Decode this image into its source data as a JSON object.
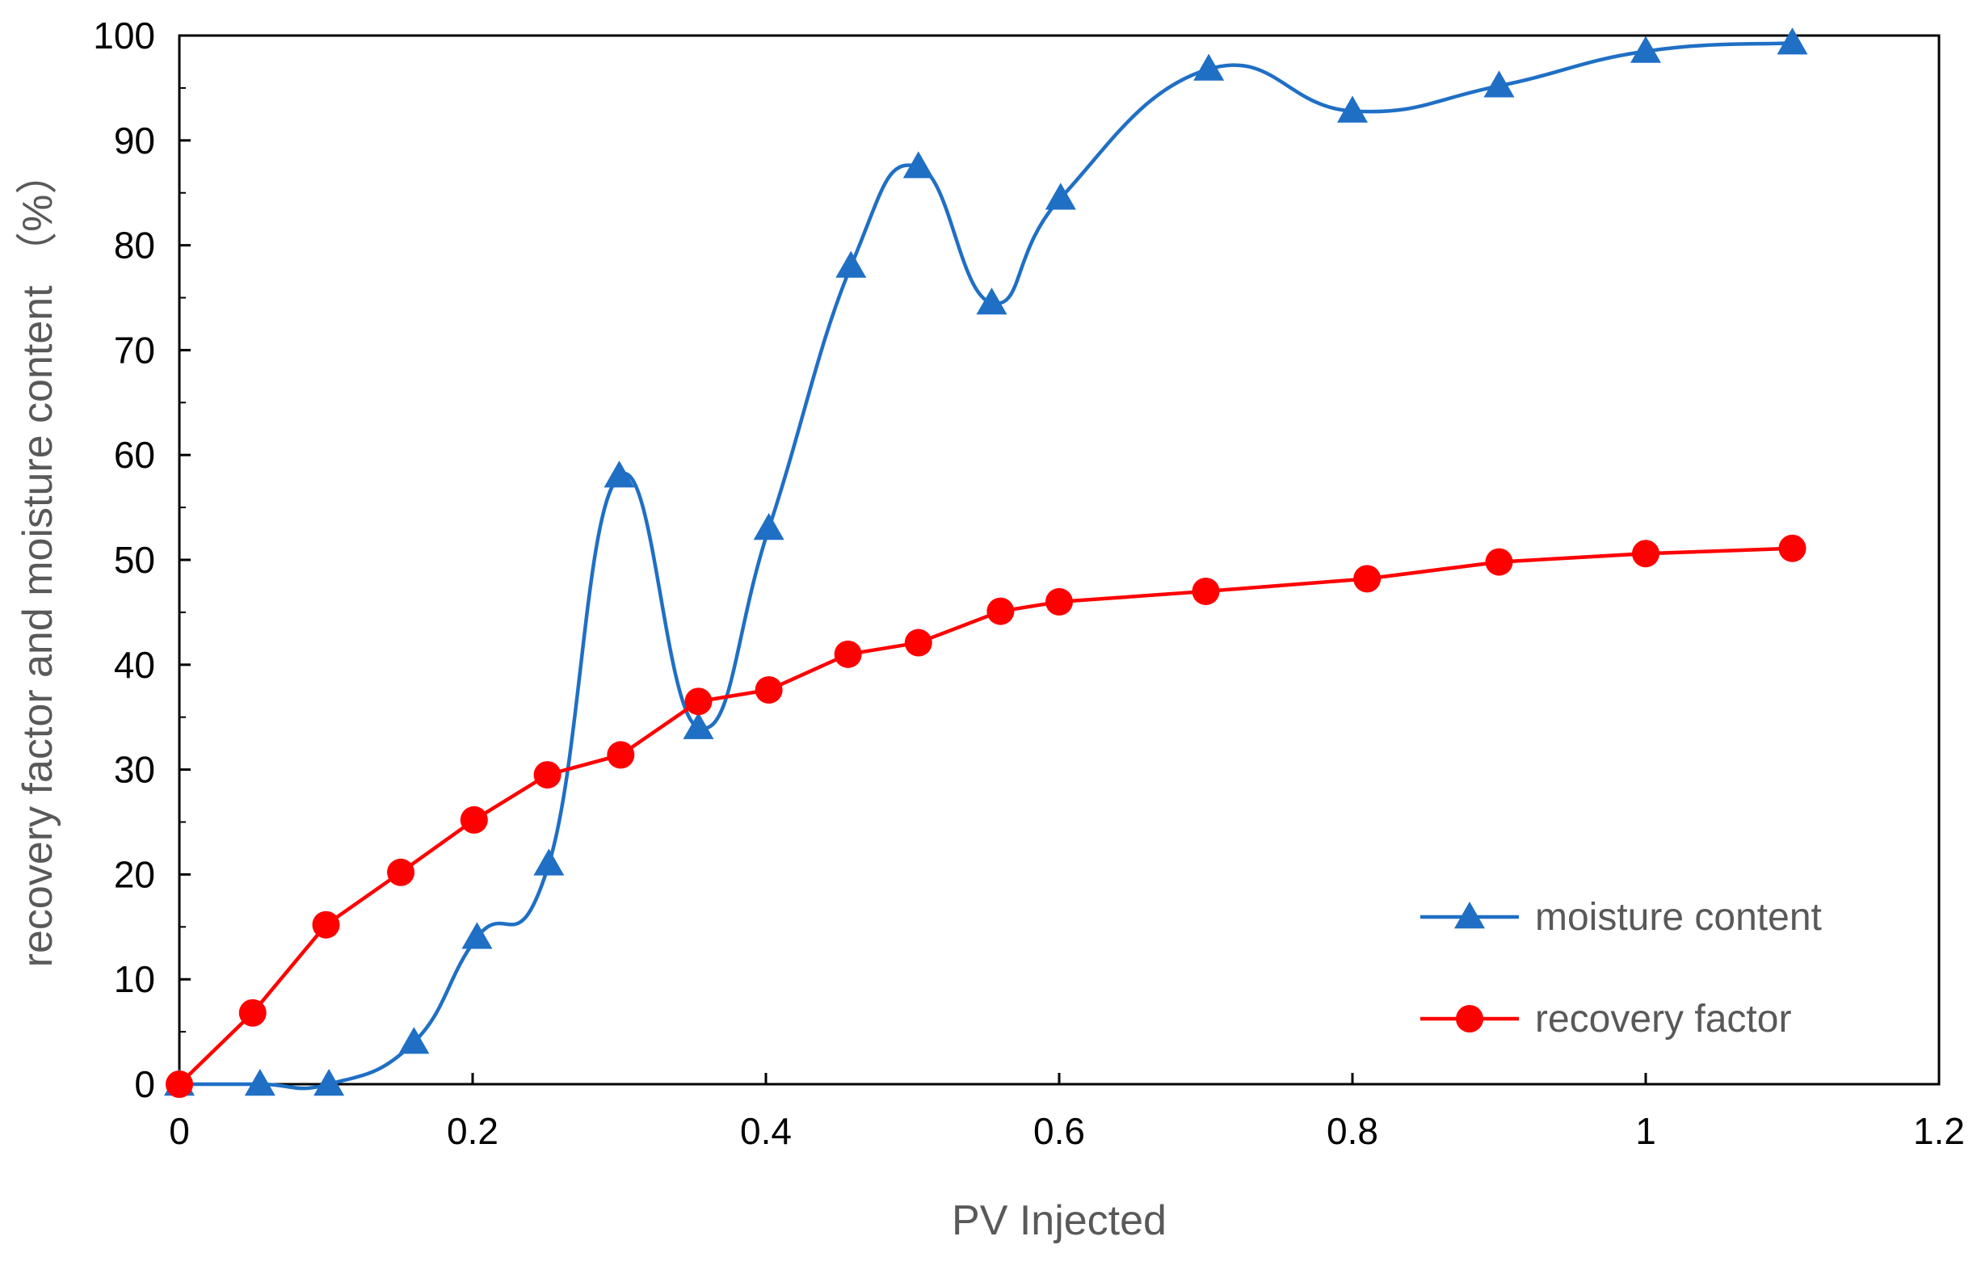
{
  "chart_data": {
    "type": "line",
    "title": "",
    "xlabel": "PV Injected",
    "ylabel": "recovery factor and moisture content （%）",
    "xlim": [
      0,
      1.2
    ],
    "ylim": [
      0,
      100
    ],
    "x_ticks": [
      "0",
      "0.2",
      "0.4",
      "0.6",
      "0.8",
      "1",
      "1.2"
    ],
    "y_ticks": [
      "0",
      "10",
      "20",
      "30",
      "40",
      "50",
      "60",
      "70",
      "80",
      "90",
      "100"
    ],
    "grid": false,
    "legend_position": "bottom-right",
    "series": [
      {
        "name": "moisture content",
        "color": "#1f6fc5",
        "marker": "triangle",
        "smooth": true,
        "points": [
          [
            0,
            0
          ],
          [
            0.055,
            0
          ],
          [
            0.102,
            0
          ],
          [
            0.16,
            4
          ],
          [
            0.203,
            14
          ],
          [
            0.252,
            21
          ],
          [
            0.3,
            58
          ],
          [
            0.354,
            34
          ],
          [
            0.402,
            53
          ],
          [
            0.458,
            78
          ],
          [
            0.504,
            87.5
          ],
          [
            0.554,
            74.5
          ],
          [
            0.601,
            84.5
          ],
          [
            0.702,
            96.8
          ],
          [
            0.8,
            92.8
          ],
          [
            0.9,
            95.2
          ],
          [
            1.0,
            98.5
          ],
          [
            1.1,
            99.3
          ]
        ]
      },
      {
        "name": "recovery factor",
        "color": "#ff0000",
        "marker": "circle",
        "smooth": false,
        "points": [
          [
            0,
            0
          ],
          [
            0.05,
            6.8
          ],
          [
            0.1,
            15.2
          ],
          [
            0.151,
            20.2
          ],
          [
            0.201,
            25.2
          ],
          [
            0.251,
            29.5
          ],
          [
            0.301,
            31.4
          ],
          [
            0.354,
            36.5
          ],
          [
            0.402,
            37.6
          ],
          [
            0.456,
            41
          ],
          [
            0.504,
            42.1
          ],
          [
            0.56,
            45.1
          ],
          [
            0.6,
            46
          ],
          [
            0.7,
            47
          ],
          [
            0.81,
            48.2
          ],
          [
            0.9,
            49.8
          ],
          [
            1.0,
            50.6
          ],
          [
            1.1,
            51.1
          ]
        ]
      }
    ]
  }
}
